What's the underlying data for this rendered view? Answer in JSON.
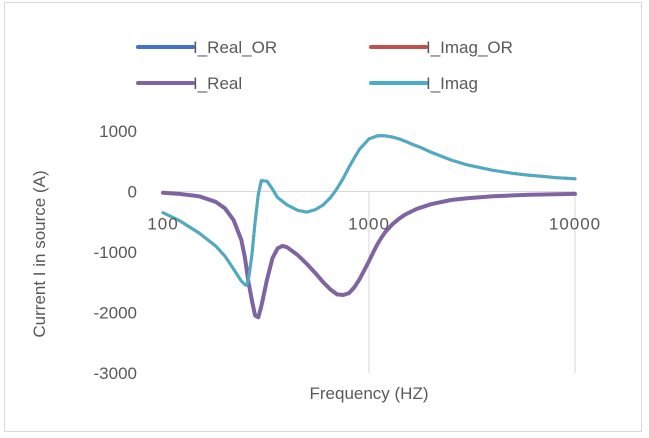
{
  "chart_data": {
    "type": "line",
    "title": "",
    "xlabel": "Frequency (HZ)",
    "ylabel": "Current I in source  (A)",
    "xscale": "log",
    "xlim": [
      100,
      10000
    ],
    "ylim": [
      -3000,
      1000
    ],
    "x_ticks": [
      "100",
      "1000",
      "10000"
    ],
    "y_ticks": [
      "1000",
      "0",
      "-1000",
      "-2000",
      "-3000"
    ],
    "grid": false,
    "legend_position": "top",
    "series": [
      {
        "name": "I_Real_OR",
        "color": "#4472c4",
        "x": [
          100,
          120,
          150,
          180,
          200,
          220,
          240,
          250,
          260,
          270,
          280,
          290,
          300,
          320,
          340,
          360,
          380,
          400,
          450,
          500,
          550,
          600,
          650,
          700,
          750,
          800,
          850,
          900,
          950,
          1000,
          1050,
          1100,
          1150,
          1200,
          1300,
          1400,
          1500,
          1700,
          2000,
          2500,
          3000,
          4000,
          5000,
          6000,
          7000,
          8000,
          10000
        ],
        "y": [
          -20,
          -40,
          -80,
          -170,
          -280,
          -470,
          -800,
          -1100,
          -1500,
          -1800,
          -2050,
          -2080,
          -1900,
          -1450,
          -1100,
          -940,
          -900,
          -920,
          -1050,
          -1200,
          -1350,
          -1500,
          -1620,
          -1700,
          -1710,
          -1680,
          -1580,
          -1450,
          -1300,
          -1150,
          -1000,
          -870,
          -760,
          -670,
          -540,
          -450,
          -380,
          -290,
          -210,
          -140,
          -110,
          -80,
          -65,
          -55,
          -50,
          -45,
          -40
        ]
      },
      {
        "name": "I_Imag_OR",
        "color": "#c0504d",
        "x": [
          100,
          120,
          150,
          180,
          200,
          220,
          240,
          250,
          255,
          260,
          270,
          280,
          290,
          300,
          320,
          340,
          360,
          400,
          450,
          500,
          550,
          600,
          650,
          700,
          750,
          800,
          850,
          900,
          1000,
          1100,
          1200,
          1300,
          1400,
          1500,
          1600,
          1800,
          2000,
          2500,
          3000,
          4000,
          5000,
          6000,
          7000,
          8000,
          10000
        ],
        "y": [
          -350,
          -480,
          -690,
          -900,
          -1070,
          -1280,
          -1480,
          -1540,
          -1550,
          -1450,
          -1050,
          -500,
          -50,
          180,
          170,
          40,
          -100,
          -220,
          -310,
          -340,
          -300,
          -220,
          -100,
          50,
          220,
          400,
          560,
          700,
          870,
          920,
          920,
          900,
          870,
          830,
          790,
          720,
          650,
          520,
          440,
          350,
          300,
          270,
          250,
          230,
          210
        ]
      },
      {
        "name": "I_Real",
        "color": "#8064a2",
        "x": [
          100,
          120,
          150,
          180,
          200,
          220,
          240,
          250,
          260,
          270,
          280,
          290,
          300,
          320,
          340,
          360,
          380,
          400,
          450,
          500,
          550,
          600,
          650,
          700,
          750,
          800,
          850,
          900,
          950,
          1000,
          1050,
          1100,
          1150,
          1200,
          1300,
          1400,
          1500,
          1700,
          2000,
          2500,
          3000,
          4000,
          5000,
          6000,
          7000,
          8000,
          10000
        ],
        "y": [
          -20,
          -40,
          -80,
          -170,
          -280,
          -470,
          -800,
          -1100,
          -1500,
          -1800,
          -2050,
          -2080,
          -1900,
          -1450,
          -1100,
          -940,
          -900,
          -920,
          -1050,
          -1200,
          -1350,
          -1500,
          -1620,
          -1700,
          -1710,
          -1680,
          -1580,
          -1450,
          -1300,
          -1150,
          -1000,
          -870,
          -760,
          -670,
          -540,
          -450,
          -380,
          -290,
          -210,
          -140,
          -110,
          -80,
          -65,
          -55,
          -50,
          -45,
          -40
        ]
      },
      {
        "name": "I_Imag",
        "color": "#4bacc6",
        "x": [
          100,
          120,
          150,
          180,
          200,
          220,
          240,
          250,
          255,
          260,
          270,
          280,
          290,
          300,
          320,
          340,
          360,
          400,
          450,
          500,
          550,
          600,
          650,
          700,
          750,
          800,
          850,
          900,
          1000,
          1100,
          1200,
          1300,
          1400,
          1500,
          1600,
          1800,
          2000,
          2500,
          3000,
          4000,
          5000,
          6000,
          7000,
          8000,
          10000
        ],
        "y": [
          -350,
          -480,
          -690,
          -900,
          -1070,
          -1280,
          -1480,
          -1540,
          -1550,
          -1450,
          -1050,
          -500,
          -50,
          180,
          170,
          40,
          -100,
          -220,
          -310,
          -340,
          -300,
          -220,
          -100,
          50,
          220,
          400,
          560,
          700,
          870,
          920,
          920,
          900,
          870,
          830,
          790,
          720,
          650,
          520,
          440,
          350,
          300,
          270,
          250,
          230,
          210
        ]
      }
    ]
  }
}
